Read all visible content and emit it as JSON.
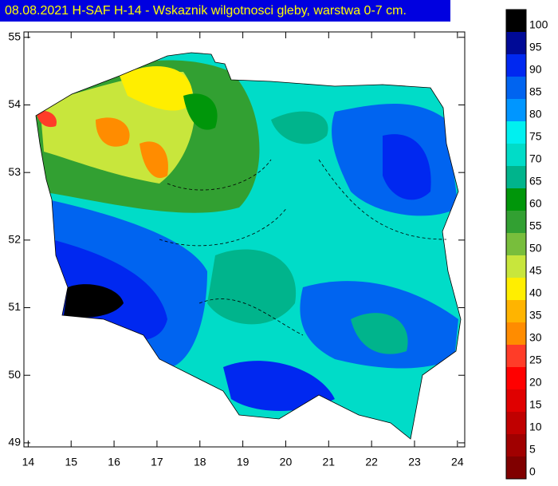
{
  "chart_data": {
    "type": "contour-map",
    "title": "08.08.2021 H-SAF H-14 - Wskaznik wilgotnosci gleby, warstwa 0-7 cm.",
    "xlim": [
      13.9,
      24.17
    ],
    "xticks": [
      14,
      15,
      16,
      17,
      18,
      19,
      20,
      21,
      22,
      23,
      24
    ],
    "ylim": [
      48.94,
      55.08
    ],
    "yticks": [
      49,
      50,
      51,
      52,
      53,
      54,
      55
    ],
    "colorbar": {
      "values": [
        0,
        5,
        10,
        15,
        20,
        25,
        30,
        35,
        40,
        45,
        50,
        55,
        60,
        65,
        70,
        75,
        80,
        85,
        90,
        95,
        100
      ],
      "colors": [
        "#800000",
        "#a00000",
        "#c00000",
        "#e00000",
        "#ff0000",
        "#ff3c28",
        "#ff8c00",
        "#ffb400",
        "#ffee00",
        "#c8e63c",
        "#78be3c",
        "#32a032",
        "#00960a",
        "#00b48c",
        "#00dcc8",
        "#00f0f0",
        "#0096ff",
        "#0064f0",
        "#0028f0",
        "#000a96",
        "#000000"
      ]
    }
  }
}
